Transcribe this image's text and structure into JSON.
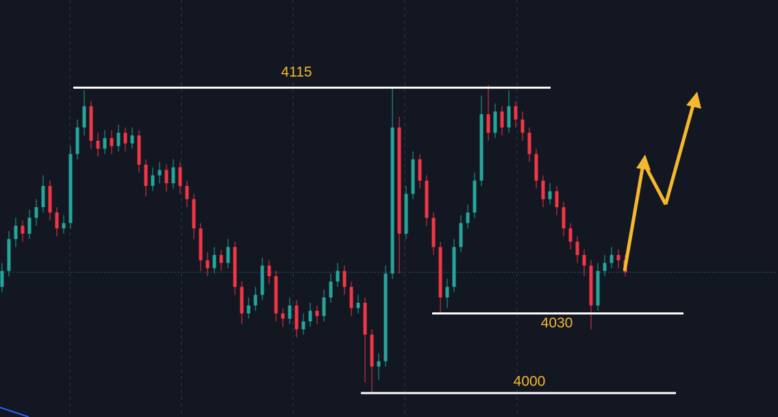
{
  "chart_data": {
    "type": "candlestick",
    "ylim": [
      3991,
      4148
    ],
    "up_color": "#26a69a",
    "down_color": "#f23645",
    "levels": [
      4115,
      4030,
      4000
    ],
    "ohlc": [
      [
        4040,
        4049,
        4038,
        4046
      ],
      [
        4046,
        4061,
        4044,
        4058
      ],
      [
        4058,
        4066,
        4055,
        4063
      ],
      [
        4063,
        4065,
        4057,
        4060
      ],
      [
        4060,
        4069,
        4058,
        4066
      ],
      [
        4066,
        4073,
        4063,
        4070
      ],
      [
        4070,
        4082,
        4068,
        4078
      ],
      [
        4078,
        4080,
        4065,
        4068
      ],
      [
        4068,
        4070,
        4059,
        4062
      ],
      [
        4062,
        4067,
        4060,
        4064
      ],
      [
        4064,
        4093,
        4062,
        4090
      ],
      [
        4090,
        4103,
        4088,
        4100
      ],
      [
        4100,
        4114,
        4097,
        4108
      ],
      [
        4108,
        4110,
        4092,
        4095
      ],
      [
        4095,
        4098,
        4089,
        4092
      ],
      [
        4092,
        4099,
        4090,
        4096
      ],
      [
        4096,
        4099,
        4090,
        4093
      ],
      [
        4093,
        4101,
        4091,
        4098
      ],
      [
        4098,
        4100,
        4091,
        4094
      ],
      [
        4094,
        4100,
        4092,
        4097
      ],
      [
        4097,
        4099,
        4083,
        4086
      ],
      [
        4086,
        4088,
        4074,
        4078
      ],
      [
        4078,
        4085,
        4076,
        4082
      ],
      [
        4082,
        4087,
        4079,
        4084
      ],
      [
        4084,
        4086,
        4076,
        4079
      ],
      [
        4079,
        4088,
        4077,
        4085
      ],
      [
        4085,
        4087,
        4075,
        4078
      ],
      [
        4078,
        4080,
        4070,
        4073
      ],
      [
        4073,
        4075,
        4058,
        4062
      ],
      [
        4062,
        4064,
        4046,
        4050
      ],
      [
        4050,
        4053,
        4044,
        4047
      ],
      [
        4047,
        4055,
        4045,
        4052
      ],
      [
        4052,
        4054,
        4046,
        4049
      ],
      [
        4049,
        4058,
        4047,
        4055
      ],
      [
        4055,
        4057,
        4037,
        4040
      ],
      [
        4040,
        4042,
        4026,
        4030
      ],
      [
        4030,
        4036,
        4028,
        4033
      ],
      [
        4033,
        4040,
        4031,
        4037
      ],
      [
        4037,
        4051,
        4035,
        4048
      ],
      [
        4048,
        4050,
        4041,
        4044
      ],
      [
        4044,
        4046,
        4027,
        4030
      ],
      [
        4030,
        4032,
        4025,
        4028
      ],
      [
        4028,
        4036,
        4026,
        4033
      ],
      [
        4033,
        4035,
        4021,
        4024
      ],
      [
        4024,
        4030,
        4022,
        4027
      ],
      [
        4027,
        4034,
        4025,
        4031
      ],
      [
        4031,
        4033,
        4026,
        4029
      ],
      [
        4029,
        4039,
        4027,
        4036
      ],
      [
        4036,
        4045,
        4034,
        4042
      ],
      [
        4042,
        4049,
        4040,
        4046
      ],
      [
        4046,
        4048,
        4037,
        4040
      ],
      [
        4040,
        4042,
        4029,
        4032
      ],
      [
        4032,
        4037,
        4030,
        4034
      ],
      [
        4034,
        4036,
        4004,
        4022
      ],
      [
        4022,
        4024,
        4000,
        4010
      ],
      [
        4010,
        4015,
        4005,
        4012
      ],
      [
        4012,
        4048,
        4010,
        4045
      ],
      [
        4045,
        4115,
        4043,
        4100
      ],
      [
        4100,
        4104,
        4045,
        4060
      ],
      [
        4060,
        4078,
        4058,
        4075
      ],
      [
        4075,
        4091,
        4073,
        4088
      ],
      [
        4088,
        4090,
        4077,
        4080
      ],
      [
        4080,
        4082,
        4063,
        4066
      ],
      [
        4066,
        4068,
        4052,
        4055
      ],
      [
        4055,
        4057,
        4030,
        4036
      ],
      [
        4036,
        4043,
        4032,
        4040
      ],
      [
        4040,
        4058,
        4038,
        4055
      ],
      [
        4055,
        4067,
        4053,
        4064
      ],
      [
        4064,
        4071,
        4062,
        4068
      ],
      [
        4068,
        4083,
        4066,
        4080
      ],
      [
        4080,
        4112,
        4078,
        4105
      ],
      [
        4105,
        4116,
        4095,
        4098
      ],
      [
        4098,
        4109,
        4096,
        4106
      ],
      [
        4106,
        4108,
        4097,
        4100
      ],
      [
        4100,
        4114,
        4098,
        4108
      ],
      [
        4108,
        4110,
        4100,
        4103
      ],
      [
        4103,
        4106,
        4095,
        4098
      ],
      [
        4098,
        4100,
        4087,
        4090
      ],
      [
        4090,
        4092,
        4077,
        4080
      ],
      [
        4080,
        4082,
        4070,
        4073
      ],
      [
        4073,
        4079,
        4071,
        4076
      ],
      [
        4076,
        4078,
        4067,
        4070
      ],
      [
        4070,
        4072,
        4059,
        4062
      ],
      [
        4062,
        4064,
        4054,
        4057
      ],
      [
        4057,
        4059,
        4049,
        4052
      ],
      [
        4052,
        4054,
        4044,
        4048
      ],
      [
        4048,
        4050,
        4024,
        4033
      ],
      [
        4033,
        4049,
        4031,
        4046
      ],
      [
        4046,
        4052,
        4044,
        4049
      ],
      [
        4049,
        4055,
        4047,
        4052
      ],
      [
        4052,
        4054,
        4047,
        4050
      ],
      [
        4050,
        4052,
        4044,
        4045.5
      ]
    ]
  }
}
